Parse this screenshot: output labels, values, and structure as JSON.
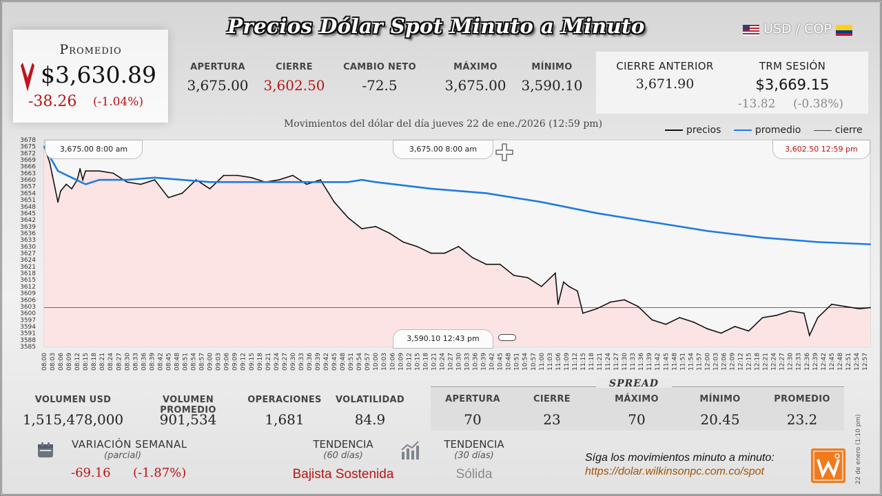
{
  "header": {
    "title": "Precios Dólar Spot Minuto a Minuto",
    "pair": "USD / COP"
  },
  "promedio": {
    "label": "Promedio",
    "value": "$3,630.89",
    "change": "-38.26",
    "change_pct": "(-1.04%)"
  },
  "stats": [
    {
      "label": "APERTURA",
      "value": "3,675.00"
    },
    {
      "label": "CIERRE",
      "value": "3,602.50"
    },
    {
      "label": "CAMBIO NETO",
      "value": "-72.5"
    },
    {
      "label": "MÁXIMO",
      "value": "3,675.00"
    },
    {
      "label": "MÍNIMO",
      "value": "3,590.10"
    }
  ],
  "previous": {
    "cierre_label": "CIERRE ANTERIOR",
    "cierre_value": "3,671.90",
    "trm_label": "TRM SESIÓN",
    "trm_value": "$3,669.15",
    "trm_change": "-13.82",
    "trm_change_pct": "(-0.38%)"
  },
  "chart_subtitle": "Movimientos del dólar del día jueves 22 de ene./2026 (12:59 pm)",
  "legend": {
    "precios": "precios",
    "promedio": "promedio",
    "cierre": "cierre"
  },
  "markers": {
    "open_left": "3,675.00   8:00 am",
    "max_center": "3,675.00   8:00 am",
    "close_right": "3,602.50   12:59 pm",
    "min_bottom": "3,590.10    12:43 pm"
  },
  "bottom_stats": [
    {
      "label": "VOLUMEN USD",
      "value": "1,515,478,000"
    },
    {
      "label": "VOLUMEN PROMEDIO",
      "value": "901,534"
    },
    {
      "label": "OPERACIONES",
      "value": "1,681"
    },
    {
      "label": "VOLATILIDAD",
      "value": "84.9"
    }
  ],
  "spread": {
    "title": "SPREAD",
    "items": [
      {
        "label": "APERTURA",
        "value": "70"
      },
      {
        "label": "CIERRE",
        "value": "23"
      },
      {
        "label": "MÁXIMO",
        "value": "70"
      },
      {
        "label": "MÍNIMO",
        "value": "20.45"
      },
      {
        "label": "PROMEDIO",
        "value": "23.2"
      }
    ]
  },
  "weekly": {
    "label": "VARIACIÓN SEMANAL",
    "sub": "(parcial)",
    "value": "-69.16",
    "pct": "(-1.87%)"
  },
  "trend60": {
    "label": "TENDENCIA",
    "sub": "(60 días)",
    "value": "Bajista Sostenida"
  },
  "trend30": {
    "label": "TENDENCIA",
    "sub": "(30 días)",
    "value": "Sólida"
  },
  "footer": {
    "cta": "Síga los movimientos minuto a minuto:",
    "url": "https://dolar.wilkinsonpc.com.co/spot",
    "side_note": "22 de enero (1:10 pm)"
  },
  "colors": {
    "price": "#111111",
    "average": "#1e7be0",
    "close_line": "#555555",
    "fill": "#fde4e4",
    "negative": "#b81414"
  },
  "chart_data": {
    "type": "line",
    "title": "Movimientos del dólar del día jueves 22 de ene./2026 (12:59 pm)",
    "ylim": [
      3585,
      3678
    ],
    "y_ticks": [
      3678,
      3675,
      3672,
      3669,
      3666,
      3663,
      3660,
      3657,
      3654,
      3651,
      3648,
      3645,
      3642,
      3639,
      3636,
      3633,
      3630,
      3627,
      3624,
      3621,
      3618,
      3615,
      3612,
      3609,
      3606,
      3603,
      3600,
      3597,
      3594,
      3591,
      3588,
      3585
    ],
    "x_ticks": [
      "08:00",
      "08:03",
      "08:06",
      "08:09",
      "08:12",
      "08:15",
      "08:18",
      "08:21",
      "08:24",
      "08:27",
      "08:30",
      "08:33",
      "08:36",
      "08:39",
      "08:42",
      "08:45",
      "08:48",
      "08:51",
      "08:54",
      "08:57",
      "09:00",
      "09:03",
      "09:06",
      "09:09",
      "09:12",
      "09:15",
      "09:18",
      "09:21",
      "09:24",
      "09:27",
      "09:30",
      "09:33",
      "09:36",
      "09:39",
      "09:42",
      "09:45",
      "09:48",
      "09:51",
      "09:54",
      "09:57",
      "10:00",
      "10:03",
      "10:06",
      "10:09",
      "10:12",
      "10:15",
      "10:18",
      "10:21",
      "10:24",
      "10:27",
      "10:30",
      "10:33",
      "10:36",
      "10:39",
      "10:42",
      "10:45",
      "10:48",
      "10:51",
      "10:54",
      "10:57",
      "11:00",
      "11:03",
      "11:06",
      "11:09",
      "11:12",
      "11:15",
      "11:18",
      "11:21",
      "11:24",
      "11:27",
      "11:30",
      "11:33",
      "11:36",
      "11:39",
      "11:42",
      "11:45",
      "11:48",
      "11:51",
      "11:54",
      "11:57",
      "12:00",
      "12:03",
      "12:06",
      "12:09",
      "12:12",
      "12:15",
      "12:18",
      "12:21",
      "12:24",
      "12:27",
      "12:30",
      "12:33",
      "12:36",
      "12:39",
      "12:42",
      "12:45",
      "12:48",
      "12:51",
      "12:54",
      "12:57"
    ],
    "x_minutes_range": [
      0,
      299
    ],
    "series": [
      {
        "name": "precios",
        "x": [
          0,
          2,
          3,
          5,
          6,
          8,
          10,
          12,
          13,
          14,
          15,
          20,
          25,
          30,
          35,
          40,
          45,
          50,
          55,
          60,
          65,
          70,
          75,
          80,
          85,
          90,
          95,
          100,
          105,
          110,
          115,
          120,
          125,
          130,
          135,
          140,
          145,
          150,
          155,
          160,
          165,
          170,
          175,
          180,
          185,
          186,
          188,
          190,
          193,
          195,
          200,
          205,
          210,
          215,
          220,
          225,
          230,
          235,
          240,
          245,
          250,
          255,
          260,
          265,
          270,
          275,
          277,
          280,
          285,
          290,
          295,
          299
        ],
        "y": [
          3675,
          3668,
          3662,
          3650,
          3655,
          3658,
          3656,
          3660,
          3665,
          3660,
          3664,
          3664,
          3663,
          3659,
          3658,
          3660,
          3652,
          3654,
          3660,
          3656,
          3662,
          3662,
          3661,
          3659,
          3660,
          3662,
          3658,
          3660,
          3650,
          3643,
          3638,
          3639,
          3636,
          3632,
          3630,
          3627,
          3627,
          3630,
          3625,
          3622,
          3622,
          3617,
          3616,
          3612,
          3618,
          3604,
          3614,
          3612,
          3610,
          3600,
          3602,
          3605,
          3606,
          3603,
          3597,
          3595,
          3598,
          3596,
          3593,
          3591,
          3594,
          3592,
          3598,
          3599,
          3601,
          3600,
          3590,
          3598,
          3604,
          3603,
          3602,
          3602.5
        ]
      },
      {
        "name": "promedio",
        "x": [
          0,
          5,
          10,
          15,
          20,
          30,
          40,
          50,
          60,
          80,
          100,
          110,
          115,
          120,
          140,
          160,
          180,
          200,
          220,
          240,
          260,
          280,
          299
        ],
        "y": [
          3675,
          3664,
          3661,
          3658,
          3660,
          3660,
          3661,
          3660,
          3659,
          3659,
          3659,
          3659,
          3660,
          3659,
          3656,
          3654,
          3650,
          3645,
          3641,
          3637,
          3634,
          3632,
          3631
        ]
      }
    ],
    "close_value": 3602.5,
    "grid": false,
    "legend_position": "top-right"
  }
}
